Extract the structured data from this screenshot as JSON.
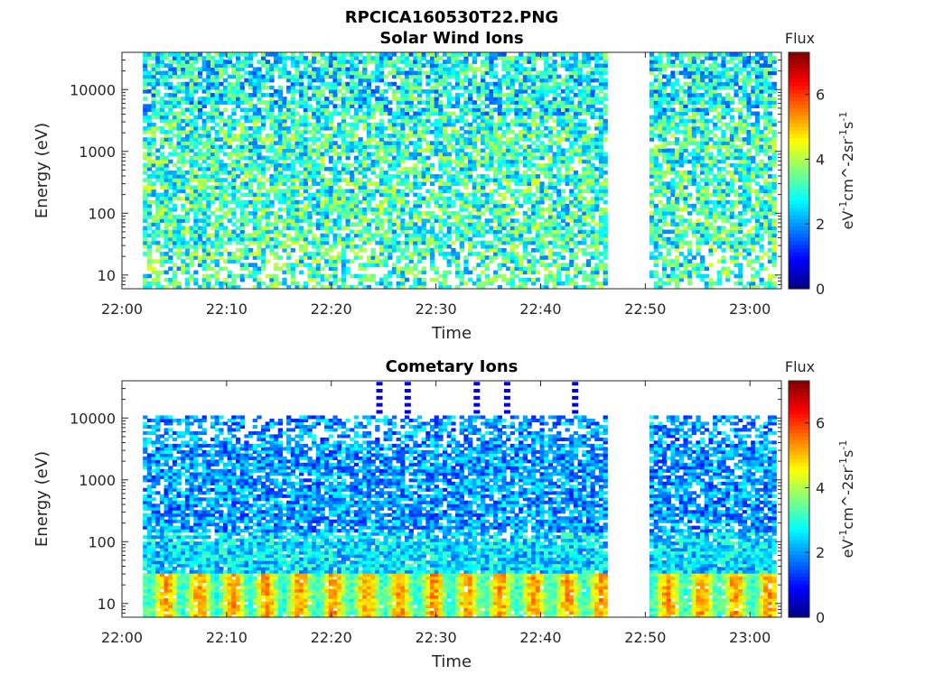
{
  "figure": {
    "title": "RPCICA160530T22.PNG"
  },
  "chart_data": [
    {
      "type": "heatmap",
      "title": "Solar Wind Ions",
      "xlabel": "Time",
      "ylabel": "Energy (eV)",
      "x_ticks": [
        "22:00",
        "22:10",
        "22:20",
        "22:30",
        "22:40",
        "22:50",
        "23:00"
      ],
      "x_range_minutes": [
        0,
        63
      ],
      "data_gap_minutes": [
        46.7,
        50.3
      ],
      "y_scale": "log",
      "y_ticks": [
        "10",
        "100",
        "1000",
        "10000"
      ],
      "y_range": [
        6,
        40000
      ],
      "colorbar": {
        "title": "Flux",
        "label": "eV^-1 cm^-2 sr^-1 s^-1",
        "ticks": [
          "0",
          "2",
          "4",
          "6"
        ],
        "range": [
          0,
          7.3
        ],
        "colormap": "jet"
      }
    },
    {
      "type": "heatmap",
      "title": "Cometary Ions",
      "xlabel": "Time",
      "ylabel": "Energy (eV)",
      "x_ticks": [
        "22:00",
        "22:10",
        "22:20",
        "22:30",
        "22:40",
        "22:50",
        "23:00"
      ],
      "x_range_minutes": [
        0,
        63
      ],
      "data_gap_minutes": [
        46.7,
        50.3
      ],
      "y_scale": "log",
      "y_ticks": [
        "10",
        "100",
        "1000",
        "10000"
      ],
      "y_range": [
        6,
        40000
      ],
      "colorbar": {
        "title": "Flux",
        "label": "eV^-1 cm^-2 sr^-1 s^-1",
        "ticks": [
          "0",
          "2",
          "4",
          "6"
        ],
        "range": [
          0,
          7.3
        ],
        "colormap": "jet"
      }
    }
  ]
}
